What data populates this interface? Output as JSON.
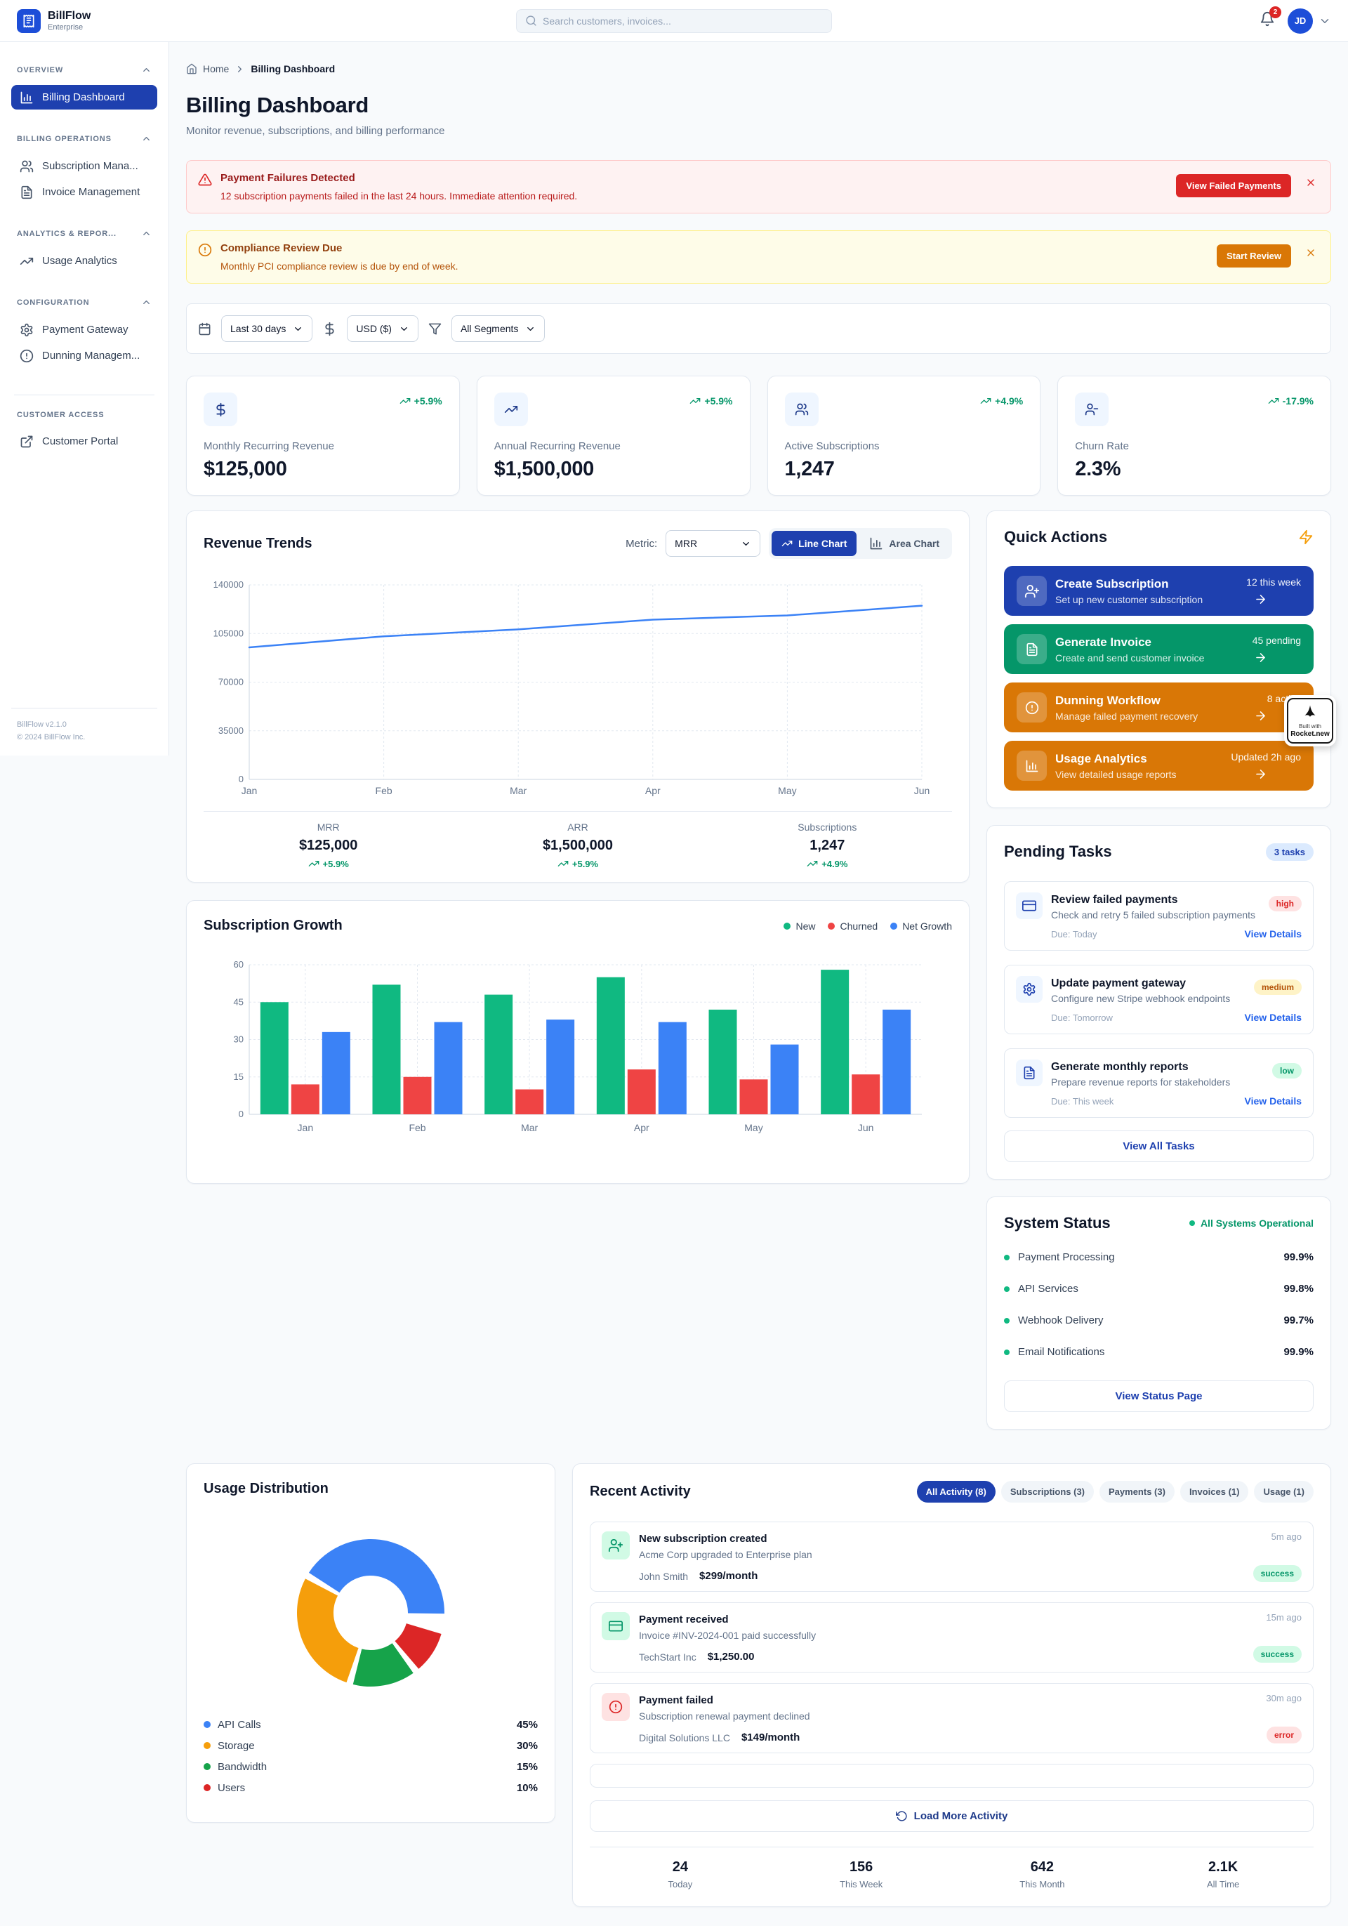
{
  "app": {
    "name": "BillFlow",
    "plan": "Enterprise",
    "version": "BillFlow v2.1.0",
    "copyright": "© 2024 BillFlow Inc."
  },
  "header": {
    "search_placeholder": "Search customers, invoices...",
    "notification_count": "2",
    "avatar_initials": "JD"
  },
  "sidebar": {
    "groups": [
      {
        "label": "OVERVIEW",
        "items": [
          {
            "label": "Billing Dashboard",
            "icon": "bar-chart",
            "active": true
          }
        ]
      },
      {
        "label": "BILLING OPERATIONS",
        "items": [
          {
            "label": "Subscription Mana...",
            "icon": "users"
          },
          {
            "label": "Invoice Management",
            "icon": "file-text"
          }
        ]
      },
      {
        "label": "ANALYTICS & REPOR...",
        "items": [
          {
            "label": "Usage Analytics",
            "icon": "trending-up"
          }
        ]
      },
      {
        "label": "CONFIGURATION",
        "items": [
          {
            "label": "Payment Gateway",
            "icon": "settings"
          },
          {
            "label": "Dunning Managem...",
            "icon": "alert-circle"
          }
        ]
      },
      {
        "label": "CUSTOMER ACCESS",
        "items": [
          {
            "label": "Customer Portal",
            "icon": "external-link"
          }
        ]
      }
    ]
  },
  "breadcrumb": {
    "home": "Home",
    "current": "Billing Dashboard"
  },
  "page": {
    "title": "Billing Dashboard",
    "subtitle": "Monitor revenue, subscriptions, and billing performance"
  },
  "alerts": [
    {
      "severity": "critical",
      "title": "Payment Failures Detected",
      "message": "12 subscription payments failed in the last 24 hours. Immediate attention required.",
      "action": "View Failed Payments",
      "accent": "#dc2626"
    },
    {
      "severity": "warning",
      "title": "Compliance Review Due",
      "message": "Monthly PCI compliance review is due by end of week.",
      "action": "Start Review",
      "accent": "#d97706"
    }
  ],
  "filters": {
    "date_range": "Last 30 days",
    "currency": "USD ($)",
    "segment": "All Segments"
  },
  "metrics": [
    {
      "label": "Monthly Recurring Revenue",
      "value": "$125,000",
      "trend": "+5.9%",
      "icon": "dollar"
    },
    {
      "label": "Annual Recurring Revenue",
      "value": "$1,500,000",
      "trend": "+5.9%",
      "icon": "trending-up"
    },
    {
      "label": "Active Subscriptions",
      "value": "1,247",
      "trend": "+4.9%",
      "icon": "users"
    },
    {
      "label": "Churn Rate",
      "value": "2.3%",
      "trend": "-17.9%",
      "icon": "user-minus"
    }
  ],
  "revenue_trends": {
    "title": "Revenue Trends",
    "metric_label": "Metric:",
    "metric_value": "MRR",
    "toggle_line": "Line Chart",
    "toggle_area": "Area Chart",
    "summary": [
      {
        "label": "MRR",
        "value": "$125,000",
        "trend": "+5.9%"
      },
      {
        "label": "ARR",
        "value": "$1,500,000",
        "trend": "+5.9%"
      },
      {
        "label": "Subscriptions",
        "value": "1,247",
        "trend": "+4.9%"
      }
    ]
  },
  "subscription_growth": {
    "title": "Subscription Growth",
    "legend": [
      {
        "label": "New",
        "color": "#10b981"
      },
      {
        "label": "Churned",
        "color": "#ef4444"
      },
      {
        "label": "Net Growth",
        "color": "#3b82f6"
      }
    ]
  },
  "quick_actions": {
    "title": "Quick Actions",
    "items": [
      {
        "title": "Create Subscription",
        "subtitle": "Set up new customer subscription",
        "meta": "12 this week",
        "color": "#1e40af",
        "icon": "user-plus"
      },
      {
        "title": "Generate Invoice",
        "subtitle": "Create and send customer invoice",
        "meta": "45 pending",
        "color": "#059669",
        "icon": "file-text"
      },
      {
        "title": "Dunning Workflow",
        "subtitle": "Manage failed payment recovery",
        "meta": "8 active",
        "color": "#d97706",
        "icon": "alert-circle"
      },
      {
        "title": "Usage Analytics",
        "subtitle": "View detailed usage reports",
        "meta": "Updated 2h ago",
        "color": "#d97706",
        "icon": "bar-chart"
      }
    ]
  },
  "pending_tasks": {
    "title": "Pending Tasks",
    "badge": "3 tasks",
    "view_all": "View All Tasks",
    "tasks": [
      {
        "title": "Review failed payments",
        "description": "Check and retry 5 failed subscription payments",
        "due": "Due: Today",
        "priority": "high",
        "icon": "credit-card",
        "link": "View Details"
      },
      {
        "title": "Update payment gateway",
        "description": "Configure new Stripe webhook endpoints",
        "due": "Due: Tomorrow",
        "priority": "medium",
        "icon": "settings",
        "link": "View Details"
      },
      {
        "title": "Generate monthly reports",
        "description": "Prepare revenue reports for stakeholders",
        "due": "Due: This week",
        "priority": "low",
        "icon": "file-text",
        "link": "View Details"
      }
    ]
  },
  "system_status": {
    "title": "System Status",
    "overall": "All Systems Operational",
    "services": [
      {
        "name": "Payment Processing",
        "uptime": "99.9%"
      },
      {
        "name": "API Services",
        "uptime": "99.8%"
      },
      {
        "name": "Webhook Delivery",
        "uptime": "99.7%"
      },
      {
        "name": "Email Notifications",
        "uptime": "99.9%"
      }
    ],
    "view_status": "View Status Page"
  },
  "usage_distribution": {
    "title": "Usage Distribution",
    "legend": [
      {
        "label": "API Calls",
        "value": "45%",
        "color": "#3b82f6"
      },
      {
        "label": "Storage",
        "value": "30%",
        "color": "#f59e0b"
      },
      {
        "label": "Bandwidth",
        "value": "15%",
        "color": "#16a34a"
      },
      {
        "label": "Users",
        "value": "10%",
        "color": "#dc2626"
      }
    ]
  },
  "recent_activity": {
    "title": "Recent Activity",
    "tabs": [
      {
        "label": "All Activity (8)",
        "active": true
      },
      {
        "label": "Subscriptions (3)"
      },
      {
        "label": "Payments (3)"
      },
      {
        "label": "Invoices (1)"
      },
      {
        "label": "Usage (1)"
      }
    ],
    "items": [
      {
        "title": "New subscription created",
        "subtitle": "Acme Corp upgraded to Enterprise plan",
        "user": "John Smith",
        "amount": "$299/month",
        "time": "5m ago",
        "status": "success",
        "icon": "user-plus"
      },
      {
        "title": "Payment received",
        "subtitle": "Invoice #INV-2024-001 paid successfully",
        "user": "TechStart Inc",
        "amount": "$1,250.00",
        "time": "15m ago",
        "status": "success",
        "icon": "credit-card"
      },
      {
        "title": "Payment failed",
        "subtitle": "Subscription renewal payment declined",
        "user": "Digital Solutions LLC",
        "amount": "$149/month",
        "time": "30m ago",
        "status": "error",
        "icon": "alert-circle"
      }
    ],
    "load_more": "Load More Activity",
    "stats": [
      {
        "value": "24",
        "label": "Today"
      },
      {
        "value": "156",
        "label": "This Week"
      },
      {
        "value": "642",
        "label": "This Month"
      },
      {
        "value": "2.1K",
        "label": "All Time"
      }
    ]
  },
  "built_with_badge": {
    "line1": "Built with",
    "line2": "Rocket.new"
  },
  "chart_data": [
    {
      "type": "line",
      "title": "Revenue Trends",
      "x": [
        "Jan",
        "Feb",
        "Mar",
        "Apr",
        "May",
        "Jun"
      ],
      "series": [
        {
          "name": "MRR",
          "values": [
            95000,
            103000,
            108000,
            115000,
            118000,
            125000
          ]
        }
      ],
      "ylim": [
        0,
        140000
      ],
      "yticks": [
        0,
        35000,
        70000,
        105000,
        140000
      ],
      "grid": true,
      "line_color": "#3b82f6"
    },
    {
      "type": "bar",
      "title": "Subscription Growth",
      "categories": [
        "Jan",
        "Feb",
        "Mar",
        "Apr",
        "May",
        "Jun"
      ],
      "series": [
        {
          "name": "New",
          "color": "#10b981",
          "values": [
            45,
            52,
            48,
            55,
            42,
            58
          ]
        },
        {
          "name": "Churned",
          "color": "#ef4444",
          "values": [
            12,
            15,
            10,
            18,
            14,
            16
          ]
        },
        {
          "name": "Net Growth",
          "color": "#3b82f6",
          "values": [
            33,
            37,
            38,
            37,
            28,
            42
          ]
        }
      ],
      "ylim": [
        0,
        60
      ],
      "yticks": [
        0,
        15,
        30,
        45,
        60
      ],
      "grid": true,
      "legend_position": "top-right"
    },
    {
      "type": "pie",
      "title": "Usage Distribution",
      "labels": [
        "API Calls",
        "Storage",
        "Bandwidth",
        "Users"
      ],
      "values": [
        45,
        30,
        15,
        10
      ],
      "colors": [
        "#3b82f6",
        "#f59e0b",
        "#16a34a",
        "#dc2626"
      ],
      "donut": true,
      "draw_order": [
        0,
        3,
        2,
        1
      ],
      "start_angle": -57,
      "gap_angles": [
        16,
        5.3,
        5.3,
        5.4
      ]
    }
  ]
}
